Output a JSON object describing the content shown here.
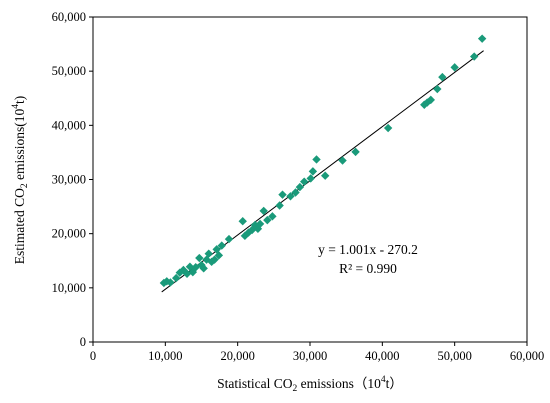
{
  "chart_data": {
    "type": "scatter",
    "title": "",
    "xlabel": {
      "prefix": "Statistical  CO",
      "sub": "2",
      "mid": " emissions（10",
      "sup": "4",
      "suffix": "t）"
    },
    "ylabel": {
      "prefix": "Estimated  CO",
      "sub": "2",
      "mid": " emissions(10",
      "sup": "4",
      "suffix": "t)"
    },
    "xlim": [
      0,
      60000
    ],
    "ylim": [
      0,
      60000
    ],
    "xticks": [
      0,
      10000,
      20000,
      30000,
      40000,
      50000,
      60000
    ],
    "yticks": [
      0,
      10000,
      20000,
      30000,
      40000,
      50000,
      60000
    ],
    "xtick_labels": [
      "0",
      "10,000",
      "20,000",
      "30,000",
      "40,000",
      "50,000",
      "60,000"
    ],
    "ytick_labels": [
      "0",
      "10,000",
      "20,000",
      "30,000",
      "40,000",
      "50,000",
      "60,000"
    ],
    "grid": false,
    "legend": "none",
    "marker": "diamond",
    "marker_color": "#1a9a7a",
    "line_color": "#000000",
    "trendline": {
      "slope": 1.001,
      "intercept": -270.2,
      "x_range": [
        9500,
        54000
      ]
    },
    "annotations": {
      "equation": "y = 1.001x - 270.2",
      "r2": "R² = 0.990"
    },
    "points": [
      [
        9800,
        10900
      ],
      [
        10200,
        11200
      ],
      [
        10700,
        11000
      ],
      [
        11500,
        11800
      ],
      [
        12000,
        12800
      ],
      [
        12500,
        13300
      ],
      [
        13000,
        12600
      ],
      [
        13400,
        13900
      ],
      [
        13800,
        12900
      ],
      [
        14200,
        13800
      ],
      [
        14700,
        15500
      ],
      [
        15000,
        14200
      ],
      [
        15300,
        13600
      ],
      [
        15700,
        15200
      ],
      [
        16000,
        16300
      ],
      [
        16400,
        14800
      ],
      [
        16800,
        15200
      ],
      [
        17100,
        17100
      ],
      [
        17400,
        16000
      ],
      [
        17800,
        17800
      ],
      [
        18800,
        19000
      ],
      [
        20700,
        22300
      ],
      [
        21000,
        19600
      ],
      [
        21500,
        20200
      ],
      [
        22000,
        20700
      ],
      [
        22400,
        21600
      ],
      [
        22800,
        20900
      ],
      [
        23100,
        21800
      ],
      [
        23600,
        24200
      ],
      [
        24100,
        22500
      ],
      [
        24800,
        23200
      ],
      [
        25800,
        25200
      ],
      [
        26200,
        27200
      ],
      [
        27300,
        26900
      ],
      [
        28000,
        27600
      ],
      [
        28600,
        28600
      ],
      [
        29200,
        29600
      ],
      [
        30100,
        30200
      ],
      [
        30400,
        31500
      ],
      [
        30900,
        33700
      ],
      [
        32100,
        30700
      ],
      [
        34500,
        33500
      ],
      [
        36300,
        35100
      ],
      [
        40800,
        39500
      ],
      [
        45800,
        43800
      ],
      [
        46200,
        44200
      ],
      [
        46700,
        44700
      ],
      [
        47600,
        46700
      ],
      [
        48300,
        48900
      ],
      [
        50000,
        50700
      ],
      [
        52700,
        52700
      ],
      [
        53800,
        56000
      ]
    ]
  }
}
